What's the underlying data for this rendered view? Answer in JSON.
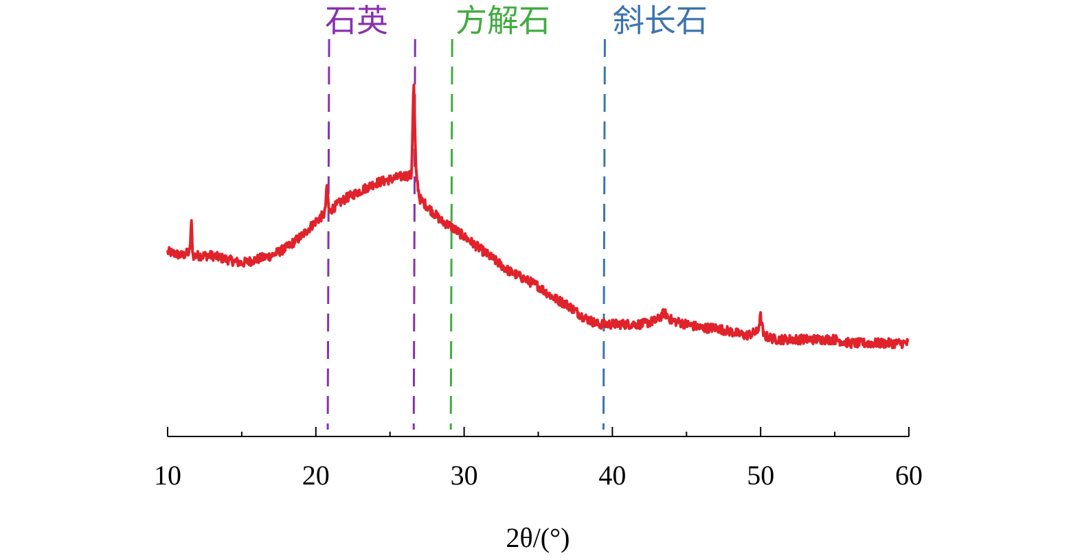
{
  "chart_data": {
    "type": "line",
    "xlabel": "2θ/(°)",
    "x_range": [
      10,
      60
    ],
    "x_ticks": [
      10,
      20,
      30,
      40,
      50,
      60
    ],
    "x_minor_ticks": [
      15,
      25,
      35,
      45,
      55
    ],
    "y_axis_shown": false,
    "series": [
      {
        "color": "#e0232b",
        "x": [
          10.0,
          11.0,
          11.5,
          11.6,
          11.7,
          12.0,
          13.0,
          14.0,
          15.0,
          16.0,
          17.0,
          18.0,
          19.0,
          20.0,
          20.6,
          20.75,
          20.9,
          21.0,
          22.0,
          23.0,
          24.0,
          25.0,
          26.0,
          26.45,
          26.6,
          26.75,
          27.0,
          27.5,
          28.0,
          28.5,
          29.0,
          30.0,
          31.0,
          32.0,
          33.0,
          34.0,
          35.0,
          36.0,
          37.0,
          38.0,
          39.0,
          40.0,
          41.0,
          42.0,
          43.0,
          43.5,
          44.0,
          45.0,
          46.0,
          47.0,
          48.0,
          49.0,
          49.8,
          50.0,
          50.2,
          51.0,
          52.0,
          53.0,
          54.0,
          55.0,
          56.0,
          57.0,
          58.0,
          59.0,
          60.0
        ],
        "y": [
          0.42,
          0.41,
          0.42,
          0.5,
          0.41,
          0.41,
          0.41,
          0.4,
          0.39,
          0.4,
          0.41,
          0.43,
          0.46,
          0.5,
          0.52,
          0.59,
          0.52,
          0.53,
          0.56,
          0.58,
          0.6,
          0.61,
          0.62,
          0.62,
          0.87,
          0.63,
          0.56,
          0.54,
          0.52,
          0.5,
          0.49,
          0.46,
          0.43,
          0.4,
          0.37,
          0.35,
          0.33,
          0.3,
          0.28,
          0.25,
          0.23,
          0.23,
          0.23,
          0.23,
          0.24,
          0.26,
          0.24,
          0.23,
          0.22,
          0.22,
          0.21,
          0.2,
          0.21,
          0.25,
          0.2,
          0.19,
          0.19,
          0.19,
          0.19,
          0.19,
          0.18,
          0.18,
          0.18,
          0.18,
          0.18
        ]
      }
    ],
    "reference_lines": [
      {
        "x": 20.8,
        "color": "#8a2fb0",
        "group": 0
      },
      {
        "x": 26.6,
        "color": "#8a2fb0",
        "group": 0
      },
      {
        "x": 29.1,
        "color": "#3fac3f",
        "group": 1
      },
      {
        "x": 39.4,
        "color": "#3c74ae",
        "group": 2
      }
    ],
    "phase_labels": [
      {
        "text": "石英",
        "color": "#8a2fb0"
      },
      {
        "text": "方解石",
        "color": "#3fac3f"
      },
      {
        "text": "斜长石",
        "color": "#3c74ae"
      }
    ]
  }
}
